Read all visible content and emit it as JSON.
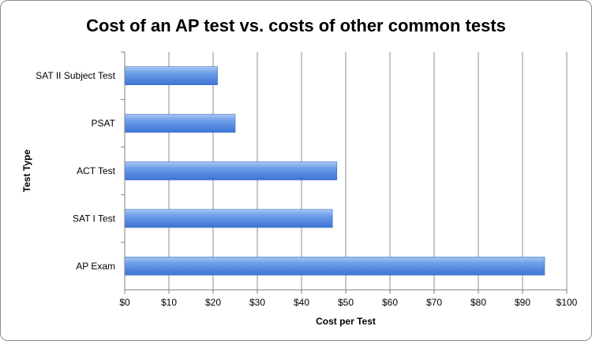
{
  "chart_data": {
    "type": "bar",
    "orientation": "horizontal",
    "title": "Cost of an AP test vs. costs of other common tests",
    "xlabel": "Cost per Test",
    "ylabel": "Test Type",
    "categories": [
      "SAT II Subject Test",
      "PSAT",
      "ACT Test",
      "SAT I Test",
      "AP Exam"
    ],
    "values": [
      21,
      25,
      48,
      47,
      95
    ],
    "xlim": [
      0,
      100
    ],
    "x_ticks": [
      "$0",
      "$10",
      "$20",
      "$30",
      "$40",
      "$50",
      "$60",
      "$70",
      "$80",
      "$90",
      "$100"
    ],
    "grid": "vertical",
    "legend": "none",
    "bar_color": "#5a8fe0"
  }
}
